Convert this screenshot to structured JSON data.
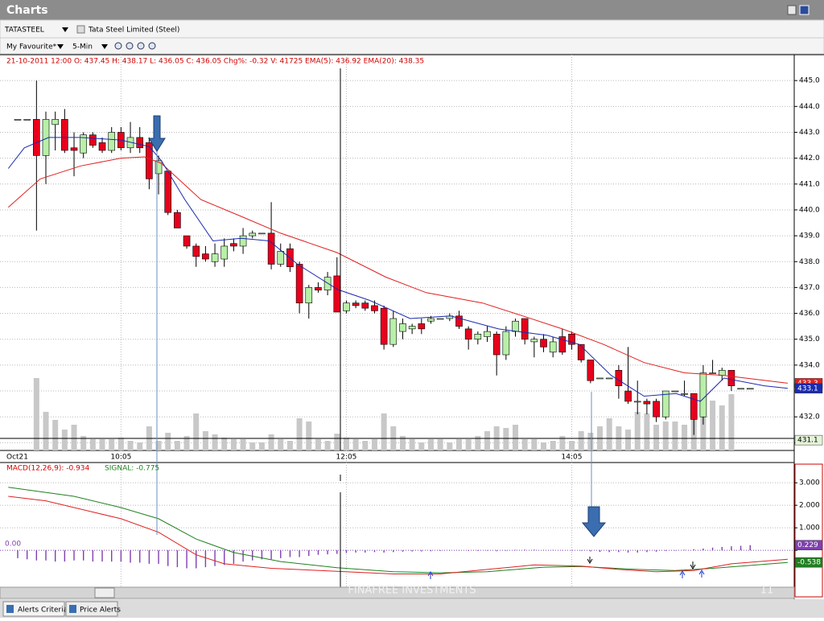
{
  "window": {
    "title": "Charts"
  },
  "toolbar": {
    "symbol": "TATASTEEL",
    "company": "Tata Steel Limited  (Steel)",
    "favourite": "My Favourite*",
    "interval": "5-Min"
  },
  "price_chart": {
    "type": "candlestick",
    "info": "21-10-2011 12:00  O: 437.45  H: 438.17  L: 436.05  C: 436.05  Chg%: -0.32  V: 41725  EMA(5):  436.92  EMA(20):  438.35",
    "date_label": "Oct21",
    "categories": [
      null,
      null,
      null,
      null,
      null,
      null,
      null,
      null,
      null,
      null,
      null,
      "10:05",
      null,
      null,
      null,
      null,
      null,
      null,
      null,
      null,
      null,
      null,
      null,
      null,
      null,
      null,
      null,
      null,
      null,
      null,
      null,
      null,
      null,
      null,
      null,
      "12:05",
      null,
      null,
      null,
      null,
      null,
      null,
      null,
      null,
      null,
      null,
      null,
      null,
      null,
      null,
      null,
      null,
      null,
      null,
      null,
      null,
      null,
      null,
      null,
      "14:05",
      null,
      null,
      null,
      null,
      null,
      null,
      null,
      null,
      null,
      null,
      null,
      null,
      null,
      null,
      null,
      null,
      null,
      null,
      null
    ],
    "open": [
      443.5,
      443.5,
      443.5,
      442.1,
      443.3,
      443.5,
      442.4,
      442.2,
      442.9,
      442.6,
      442.3,
      443.0,
      442.4,
      442.8,
      442.6,
      441.4,
      441.5,
      439.9,
      439.0,
      438.6,
      438.3,
      438.0,
      438.1,
      438.7,
      438.6,
      439.0,
      439.1,
      439.1,
      437.9,
      438.5,
      437.9,
      436.4,
      437.0,
      436.9,
      437.45,
      436.1,
      436.4,
      436.4,
      436.3,
      436.2,
      434.8,
      435.3,
      435.4,
      435.6,
      435.7,
      435.8,
      435.8,
      435.9,
      435.4,
      435.0,
      435.1,
      435.2,
      434.4,
      435.3,
      435.8,
      434.9,
      435.0,
      434.5,
      435.1,
      435.2,
      434.8,
      434.2,
      433.5,
      433.5,
      433.8,
      433.0,
      432.6,
      432.6,
      432.6,
      432.0,
      433.0,
      432.9,
      432.9,
      432.0,
      433.7,
      433.6,
      433.8,
      433.1,
      433.1
    ],
    "high": [
      443.5,
      443.5,
      445.0,
      443.8,
      443.8,
      443.9,
      443.0,
      443.0,
      443.0,
      442.8,
      443.2,
      443.2,
      443.4,
      443.2,
      442.8,
      442.1,
      441.5,
      440.0,
      439.0,
      438.7,
      438.6,
      438.7,
      438.9,
      438.9,
      439.3,
      439.2,
      439.1,
      440.3,
      438.7,
      438.7,
      438.0,
      437.1,
      437.2,
      437.6,
      438.17,
      436.5,
      436.5,
      436.5,
      436.5,
      436.3,
      436.1,
      435.8,
      435.6,
      435.8,
      435.9,
      435.8,
      436.0,
      436.1,
      435.5,
      435.3,
      435.5,
      435.3,
      435.5,
      435.8,
      435.8,
      435.1,
      435.2,
      435.1,
      435.4,
      435.3,
      434.8,
      434.2,
      433.5,
      433.5,
      434.0,
      434.7,
      433.4,
      432.7,
      432.7,
      433.0,
      433.0,
      433.4,
      432.9,
      434.0,
      434.2,
      433.9,
      433.8,
      433.1,
      433.1
    ],
    "low": [
      443.5,
      443.5,
      439.2,
      441.0,
      442.3,
      442.2,
      441.3,
      442.0,
      442.4,
      442.2,
      442.2,
      442.3,
      442.2,
      442.2,
      440.8,
      440.6,
      439.8,
      439.3,
      438.5,
      437.8,
      438.0,
      437.8,
      437.8,
      438.4,
      438.3,
      438.9,
      439.1,
      437.7,
      437.8,
      437.6,
      436.0,
      435.8,
      436.8,
      436.7,
      436.05,
      436.0,
      436.2,
      436.1,
      436.0,
      434.6,
      434.7,
      435.0,
      435.2,
      435.2,
      435.6,
      435.8,
      435.7,
      435.4,
      434.6,
      434.8,
      434.9,
      433.6,
      434.2,
      435.1,
      434.8,
      434.3,
      434.5,
      434.3,
      434.4,
      434.6,
      434.1,
      433.3,
      433.5,
      433.5,
      432.7,
      432.5,
      432.1,
      432.1,
      431.8,
      431.9,
      433.0,
      432.8,
      431.3,
      431.7,
      433.7,
      433.4,
      433.0,
      433.1,
      433.1
    ],
    "close": [
      443.5,
      443.5,
      442.1,
      443.5,
      443.5,
      442.3,
      442.3,
      442.9,
      442.5,
      442.3,
      443.0,
      442.4,
      442.8,
      442.4,
      441.2,
      441.9,
      439.9,
      439.3,
      438.6,
      438.2,
      438.1,
      438.3,
      438.6,
      438.6,
      439.0,
      439.1,
      439.1,
      437.9,
      438.4,
      437.8,
      436.4,
      437.0,
      436.9,
      437.4,
      436.05,
      436.4,
      436.3,
      436.2,
      436.1,
      434.8,
      435.8,
      435.6,
      435.5,
      435.4,
      435.8,
      435.8,
      435.9,
      435.5,
      435.0,
      435.2,
      435.3,
      434.4,
      435.3,
      435.7,
      435.0,
      435.0,
      434.7,
      434.9,
      434.5,
      434.8,
      434.2,
      433.4,
      433.5,
      433.5,
      433.2,
      432.6,
      432.6,
      432.5,
      432.0,
      433.0,
      433.0,
      432.9,
      431.9,
      433.7,
      433.7,
      433.8,
      433.2,
      433.1,
      433.1
    ],
    "volume": [
      0,
      0,
      180000,
      96000,
      76000,
      52000,
      64000,
      36000,
      28000,
      28000,
      28000,
      32000,
      24000,
      20000,
      60000,
      24000,
      44000,
      24000,
      36000,
      92000,
      48000,
      40000,
      32000,
      28000,
      28000,
      20000,
      20000,
      40000,
      28000,
      24000,
      80000,
      72000,
      28000,
      24000,
      41725,
      32000,
      28000,
      24000,
      28000,
      92000,
      60000,
      36000,
      28000,
      20000,
      28000,
      28000,
      20000,
      28000,
      28000,
      36000,
      48000,
      60000,
      56000,
      64000,
      28000,
      28000,
      20000,
      24000,
      36000,
      24000,
      48000,
      44000,
      60000,
      80000,
      60000,
      52000,
      96000,
      92000,
      64000,
      72000,
      72000,
      64000,
      100000,
      120000,
      124000,
      112000,
      140000,
      0,
      0
    ],
    "ema20": {
      "color": "#e02020",
      "x": [
        -1,
        2.4,
        6.7,
        11,
        13.5,
        15.3,
        19.5,
        23.8,
        28,
        34,
        39.2,
        43.5,
        49.5,
        53.8,
        58,
        62.4,
        66.7,
        71,
        75.2,
        82
      ],
      "values": [
        440.1,
        441.2,
        441.7,
        442.0,
        442.05,
        441.8,
        440.4,
        439.75,
        439.1,
        438.35,
        437.4,
        436.8,
        436.4,
        435.9,
        435.4,
        434.8,
        434.1,
        433.7,
        433.6,
        433.3
      ]
    },
    "ema5": {
      "color": "#1a2ab0",
      "x": [
        -1,
        0.7,
        3.3,
        6.7,
        11,
        14,
        15.3,
        17.8,
        20.8,
        23.8,
        26.8,
        29.8,
        34.1,
        37.5,
        41.8,
        46.1,
        51.2,
        56.4,
        59.8,
        63.2,
        66.7,
        70.1,
        72.7,
        75.2,
        79.5,
        82
      ],
      "values": [
        441.6,
        442.4,
        442.8,
        442.8,
        442.7,
        442.45,
        441.9,
        440.4,
        438.8,
        438.9,
        438.8,
        437.9,
        436.92,
        436.5,
        435.8,
        435.9,
        435.4,
        435.15,
        434.8,
        433.6,
        432.8,
        432.9,
        432.6,
        433.5,
        433.2,
        433.1
      ]
    },
    "cursor_price": 431.1,
    "up_color": "#b8f0a8",
    "down_color": "#e8001c",
    "volume_color": "#c8c8c8",
    "ylim": [
      430.7,
      446.0
    ],
    "yticks": [
      {
        "value": 431,
        "label": "431.0"
      },
      {
        "value": 432,
        "label": "432.0"
      },
      {
        "value": 433,
        "label": "433.0"
      },
      {
        "value": 434,
        "label": "434.0"
      },
      {
        "value": 435,
        "label": "435.0"
      },
      {
        "value": 436,
        "label": "436.0"
      },
      {
        "value": 437,
        "label": "437.0"
      },
      {
        "value": 438,
        "label": "438.0"
      },
      {
        "value": 439,
        "label": "439.0"
      },
      {
        "value": 440,
        "label": "440.0"
      },
      {
        "value": 441,
        "label": "441.0"
      },
      {
        "value": 442,
        "label": "442.0"
      },
      {
        "value": 443,
        "label": "443.0"
      },
      {
        "value": 444,
        "label": "444.0"
      },
      {
        "value": 445,
        "label": "445.0"
      }
    ],
    "grid": true
  },
  "macd_chart": {
    "type": "macd",
    "macd_label": "MACD(12,26,9):  -0.934",
    "signal_label": "SIGNAL: -0.775",
    "histogram": {
      "color": "#8040b0",
      "values": [
        -0.35,
        -0.4,
        -0.45,
        -0.45,
        -0.5,
        -0.5,
        -0.45,
        -0.45,
        -0.5,
        -0.5,
        -0.5,
        -0.5,
        -0.55,
        -0.55,
        -0.6,
        -0.6,
        -0.7,
        -0.75,
        -0.8,
        -0.8,
        -0.75,
        -0.7,
        -0.65,
        -0.6,
        -0.5,
        -0.45,
        -0.4,
        -0.4,
        -0.35,
        -0.3,
        -0.3,
        -0.25,
        -0.2,
        -0.18,
        -0.159,
        -0.12,
        -0.1,
        -0.1,
        -0.08,
        -0.1,
        -0.08,
        -0.06,
        -0.05,
        -0.05,
        -0.04,
        -0.03,
        -0.02,
        -0.02,
        -0.03,
        -0.03,
        -0.02,
        -0.04,
        -0.02,
        0.02,
        0.03,
        0.03,
        0.02,
        0.02,
        0.01,
        0.0,
        -0.02,
        -0.05,
        -0.07,
        -0.08,
        -0.08,
        -0.1,
        -0.1,
        -0.08,
        -0.06,
        -0.03,
        0.0,
        0.02,
        0.05,
        0.08,
        0.12,
        0.15,
        0.18,
        0.2,
        0.229
      ]
    },
    "macd": {
      "color": "#e02020",
      "x": [
        -1,
        3,
        11,
        15,
        19,
        22,
        27,
        34,
        40,
        45,
        50,
        55,
        60,
        64,
        68,
        72,
        76,
        82
      ],
      "values": [
        2.4,
        2.2,
        1.4,
        0.8,
        -0.2,
        -0.6,
        -0.8,
        -0.934,
        -1.05,
        -1.05,
        -0.85,
        -0.65,
        -0.7,
        -0.85,
        -0.95,
        -0.9,
        -0.6,
        -0.4
      ]
    },
    "signal": {
      "color": "#208020",
      "x": [
        -1,
        6,
        11,
        15,
        19,
        23,
        28,
        34,
        40,
        45,
        50,
        56,
        60,
        66,
        70,
        74,
        82
      ],
      "values": [
        2.8,
        2.4,
        1.9,
        1.4,
        0.5,
        -0.1,
        -0.5,
        -0.775,
        -0.95,
        -1.0,
        -0.95,
        -0.75,
        -0.72,
        -0.85,
        -0.9,
        -0.8,
        -0.538
      ]
    },
    "ylim": [
      -1.64,
      3.9
    ],
    "yticks": [
      {
        "value": 0,
        "label": "0.00"
      },
      {
        "value": 1,
        "label": "1.000"
      },
      {
        "value": 2,
        "label": "2.000"
      },
      {
        "value": 3,
        "label": "3.000"
      }
    ],
    "grid": true
  },
  "footer": {
    "watermark": "FINAFREE INVESTMENTS",
    "page": "11"
  },
  "tabs": [
    "Alerts Criteria",
    "Price Alerts"
  ]
}
